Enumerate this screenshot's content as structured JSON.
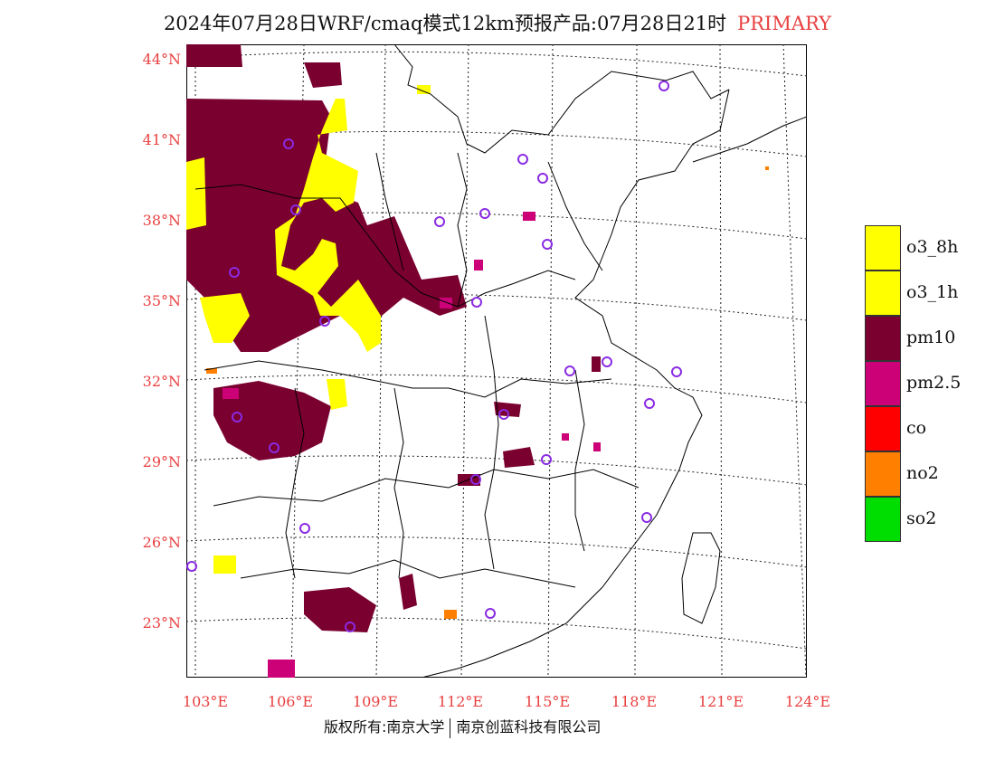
{
  "title": {
    "main": "2024年07月28日WRF/cmaq模式12km预报产品:07月28日21时",
    "tag": "PRIMARY"
  },
  "colors": {
    "label_red": "#e84040",
    "o3_8h": "#ffff00",
    "o3_1h": "#ffff00",
    "pm10": "#7a0030",
    "pm25": "#cc0077",
    "co": "#ff0000",
    "no2": "#ff7f00",
    "so2": "#00dd00",
    "station": "#8a2be2"
  },
  "lat_labels": [
    "44°N",
    "41°N",
    "38°N",
    "35°N",
    "32°N",
    "29°N",
    "26°N",
    "23°N"
  ],
  "lon_labels": [
    "103°E",
    "106°E",
    "109°E",
    "112°E",
    "115°E",
    "118°E",
    "121°E",
    "124°E"
  ],
  "legend": [
    {
      "label": "o3_8h",
      "color": "#ffff00"
    },
    {
      "label": "o3_1h",
      "color": "#ffff00"
    },
    {
      "label": "pm10",
      "color": "#7a0030"
    },
    {
      "label": "pm2.5",
      "color": "#cc0077"
    },
    {
      "label": "co",
      "color": "#ff0000"
    },
    {
      "label": "no2",
      "color": "#ff7f00"
    },
    {
      "label": "so2",
      "color": "#00dd00"
    }
  ],
  "footer": {
    "left": "版权所有:南京大学",
    "right": "南京创蓝科技有限公司"
  }
}
